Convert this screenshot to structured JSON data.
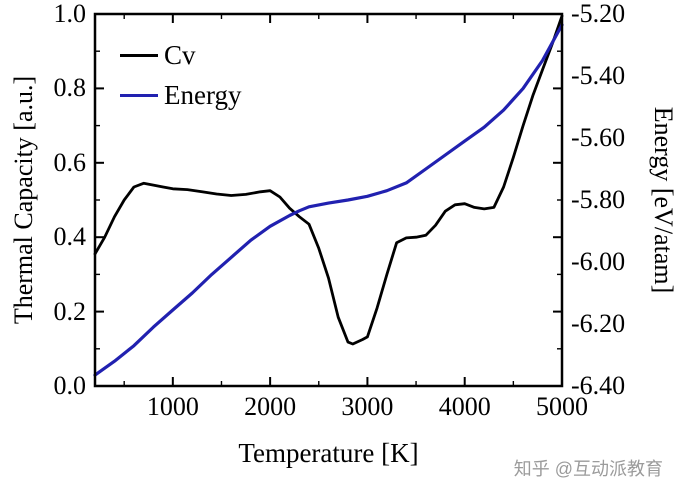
{
  "figure": {
    "watermark": "知乎 @互动派教育"
  },
  "chart_data": {
    "type": "line",
    "title": "",
    "xlabel": "Temperature [K]",
    "ylabel_left": "Thermal Capacity [a.u.]",
    "ylabel_right": "Energy [eV/atam]",
    "xlim": [
      200,
      5000
    ],
    "ylim_left": [
      0.0,
      1.0
    ],
    "ylim_right": [
      -6.4,
      -5.2
    ],
    "grid": false,
    "legend_position": "top-left",
    "x_ticks": [
      {
        "v": 1000,
        "label": "1000"
      },
      {
        "v": 2000,
        "label": "2000"
      },
      {
        "v": 3000,
        "label": "3000"
      },
      {
        "v": 4000,
        "label": "4000"
      },
      {
        "v": 5000,
        "label": "5000"
      }
    ],
    "y_ticks_left": [
      {
        "v": 0.0,
        "label": "0.0"
      },
      {
        "v": 0.2,
        "label": "0.2"
      },
      {
        "v": 0.4,
        "label": "0.4"
      },
      {
        "v": 0.6,
        "label": "0.6"
      },
      {
        "v": 0.8,
        "label": "0.8"
      },
      {
        "v": 1.0,
        "label": "1.0"
      }
    ],
    "y_ticks_right": [
      {
        "v": -6.4,
        "label": "-6.40"
      },
      {
        "v": -6.2,
        "label": "-6.20"
      },
      {
        "v": -6.0,
        "label": "-6.00"
      },
      {
        "v": -5.8,
        "label": "-5.80"
      },
      {
        "v": -5.6,
        "label": "-5.60"
      },
      {
        "v": -5.4,
        "label": "-5.40"
      },
      {
        "v": -5.2,
        "label": "-5.20"
      }
    ],
    "series": [
      {
        "name": "Cv",
        "axis": "left",
        "color": "#000000",
        "points": [
          [
            200,
            0.355
          ],
          [
            300,
            0.4
          ],
          [
            400,
            0.455
          ],
          [
            500,
            0.5
          ],
          [
            600,
            0.535
          ],
          [
            700,
            0.545
          ],
          [
            800,
            0.54
          ],
          [
            900,
            0.535
          ],
          [
            1000,
            0.53
          ],
          [
            1150,
            0.528
          ],
          [
            1300,
            0.522
          ],
          [
            1450,
            0.516
          ],
          [
            1600,
            0.512
          ],
          [
            1750,
            0.515
          ],
          [
            1900,
            0.522
          ],
          [
            2000,
            0.525
          ],
          [
            2100,
            0.508
          ],
          [
            2200,
            0.478
          ],
          [
            2300,
            0.455
          ],
          [
            2400,
            0.435
          ],
          [
            2500,
            0.37
          ],
          [
            2600,
            0.29
          ],
          [
            2700,
            0.185
          ],
          [
            2800,
            0.118
          ],
          [
            2850,
            0.113
          ],
          [
            2950,
            0.125
          ],
          [
            3000,
            0.132
          ],
          [
            3100,
            0.21
          ],
          [
            3200,
            0.3
          ],
          [
            3300,
            0.385
          ],
          [
            3400,
            0.398
          ],
          [
            3500,
            0.4
          ],
          [
            3600,
            0.405
          ],
          [
            3700,
            0.432
          ],
          [
            3800,
            0.47
          ],
          [
            3900,
            0.487
          ],
          [
            4000,
            0.49
          ],
          [
            4100,
            0.48
          ],
          [
            4200,
            0.476
          ],
          [
            4300,
            0.48
          ],
          [
            4400,
            0.535
          ],
          [
            4500,
            0.615
          ],
          [
            4600,
            0.7
          ],
          [
            4700,
            0.78
          ],
          [
            4800,
            0.85
          ],
          [
            4900,
            0.92
          ],
          [
            5000,
            0.995
          ]
        ]
      },
      {
        "name": "Energy",
        "axis": "right",
        "color": "#2121b0",
        "points": [
          [
            200,
            -6.365
          ],
          [
            400,
            -6.32
          ],
          [
            600,
            -6.27
          ],
          [
            800,
            -6.21
          ],
          [
            1000,
            -6.155
          ],
          [
            1200,
            -6.1
          ],
          [
            1400,
            -6.04
          ],
          [
            1600,
            -5.985
          ],
          [
            1800,
            -5.93
          ],
          [
            2000,
            -5.885
          ],
          [
            2200,
            -5.85
          ],
          [
            2300,
            -5.835
          ],
          [
            2400,
            -5.822
          ],
          [
            2600,
            -5.81
          ],
          [
            2800,
            -5.8
          ],
          [
            3000,
            -5.788
          ],
          [
            3200,
            -5.77
          ],
          [
            3400,
            -5.745
          ],
          [
            3600,
            -5.7
          ],
          [
            3800,
            -5.655
          ],
          [
            4000,
            -5.61
          ],
          [
            4200,
            -5.565
          ],
          [
            4400,
            -5.51
          ],
          [
            4600,
            -5.44
          ],
          [
            4800,
            -5.35
          ],
          [
            5000,
            -5.235
          ]
        ]
      }
    ]
  }
}
